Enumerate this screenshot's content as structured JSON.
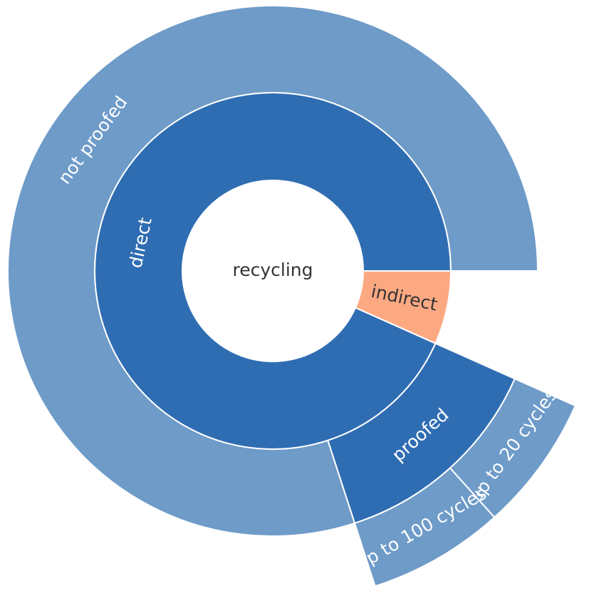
{
  "chart_data": {
    "type": "sunburst",
    "labels": [
      "recycling",
      "indirect",
      "direct",
      "proofed",
      "not proofed",
      "up to 20 cycles",
      "up to 100 cycles"
    ],
    "parents": [
      null,
      "recycling",
      "recycling",
      "direct",
      "direct",
      "proofed",
      "proofed"
    ],
    "values": [
      15,
      1,
      14,
      2,
      12,
      1,
      1
    ],
    "colors": [
      "#ffffff",
      "#fca982",
      "#2f6db3",
      "#2f6db3",
      "#6e9bc8",
      "#6e9bc8",
      "#6e9bc8"
    ]
  }
}
